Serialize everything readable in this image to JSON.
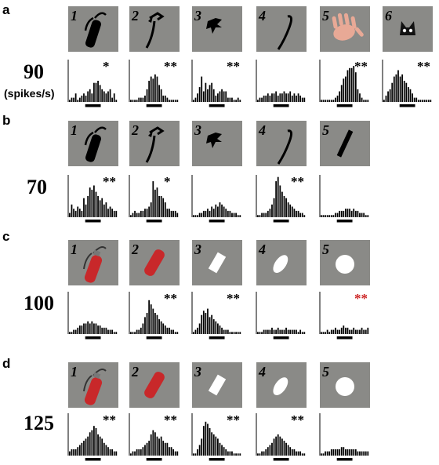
{
  "figure": {
    "panels": [
      {
        "letter": "a",
        "scale_label": "90",
        "unit_label": "(spikes/s)",
        "stimuli": [
          {
            "num": "1",
            "icon": "fire-extinguisher-silhouette-icon",
            "hist": [
              1,
              2,
              2,
              4,
              1,
              2,
              3,
              4,
              3,
              5,
              6,
              4,
              9,
              9,
              10,
              8,
              6,
              5,
              4,
              5,
              6,
              2,
              4,
              1
            ],
            "sig": "*",
            "sig_color": "#000000"
          },
          {
            "num": "2",
            "icon": "extinguisher-hose-icon",
            "hist": [
              1,
              1,
              1,
              1,
              2,
              2,
              2,
              3,
              6,
              10,
              12,
              11,
              13,
              12,
              8,
              6,
              3,
              3,
              2,
              1,
              1,
              1,
              1,
              1
            ],
            "sig": "**",
            "sig_color": "#000000"
          },
          {
            "num": "3",
            "icon": "extinguisher-handle-icon",
            "hist": [
              1,
              2,
              4,
              7,
              12,
              5,
              9,
              6,
              8,
              9,
              6,
              3,
              4,
              5,
              6,
              5,
              5,
              2,
              2,
              2,
              1,
              1,
              2,
              1
            ],
            "sig": "**",
            "sig_color": "#000000"
          },
          {
            "num": "4",
            "icon": "curved-hose-icon",
            "hist": [
              1,
              2,
              2,
              3,
              3,
              4,
              3,
              4,
              4,
              5,
              3,
              4,
              4,
              5,
              4,
              4,
              5,
              3,
              4,
              3,
              4,
              3,
              2,
              2
            ],
            "sig": "",
            "sig_color": "#000000"
          },
          {
            "num": "5",
            "icon": "hand-icon",
            "hist": [
              1,
              1,
              1,
              1,
              1,
              1,
              1,
              2,
              3,
              5,
              8,
              11,
              12,
              15,
              16,
              16,
              17,
              14,
              6,
              4,
              2,
              1,
              1,
              1
            ],
            "sig": "**",
            "sig_color": "#000000"
          },
          {
            "num": "6",
            "icon": "cat-face-icon",
            "hist": [
              1,
              3,
              5,
              6,
              9,
              12,
              13,
              15,
              12,
              13,
              10,
              9,
              7,
              6,
              4,
              2,
              2,
              1,
              1,
              1,
              1,
              1,
              1,
              1
            ],
            "sig": "**",
            "sig_color": "#000000"
          }
        ]
      },
      {
        "letter": "b",
        "scale_label": "70",
        "unit_label": "",
        "stimuli": [
          {
            "num": "1",
            "icon": "fire-extinguisher-silhouette-icon",
            "hist": [
              2,
              6,
              4,
              3,
              5,
              4,
              3,
              9,
              6,
              10,
              14,
              13,
              15,
              12,
              10,
              8,
              9,
              6,
              7,
              4,
              5,
              4,
              3,
              3
            ],
            "sig": "**",
            "sig_color": "#000000"
          },
          {
            "num": "2",
            "icon": "extinguisher-hose-icon",
            "hist": [
              1,
              2,
              3,
              2,
              2,
              3,
              3,
              4,
              4,
              5,
              7,
              17,
              13,
              14,
              10,
              10,
              9,
              7,
              4,
              4,
              3,
              3,
              3,
              2
            ],
            "sig": "*",
            "sig_color": "#000000"
          },
          {
            "num": "3",
            "icon": "extinguisher-handle-icon",
            "hist": [
              1,
              1,
              1,
              2,
              2,
              3,
              3,
              4,
              3,
              5,
              4,
              6,
              5,
              7,
              6,
              5,
              4,
              3,
              3,
              2,
              2,
              2,
              1,
              1
            ],
            "sig": "",
            "sig_color": "#000000"
          },
          {
            "num": "4",
            "icon": "curved-hose-icon",
            "hist": [
              1,
              1,
              2,
              2,
              2,
              3,
              4,
              6,
              9,
              17,
              19,
              15,
              12,
              10,
              9,
              7,
              6,
              5,
              4,
              3,
              3,
              2,
              2,
              1
            ],
            "sig": "**",
            "sig_color": "#000000"
          },
          {
            "num": "5",
            "icon": "rod-icon",
            "hist": [
              1,
              1,
              1,
              1,
              1,
              1,
              1,
              2,
              2,
              3,
              3,
              3,
              4,
              4,
              4,
              3,
              4,
              3,
              3,
              2,
              2,
              2,
              1,
              1
            ],
            "sig": "",
            "sig_color": "#000000"
          }
        ]
      },
      {
        "letter": "c",
        "scale_label": "100",
        "unit_label": "",
        "stimuli": [
          {
            "num": "1",
            "icon": "red-fire-extinguisher-icon",
            "hist": [
              1,
              1,
              2,
              2,
              3,
              4,
              4,
              5,
              5,
              6,
              5,
              6,
              5,
              5,
              4,
              4,
              3,
              3,
              3,
              2,
              2,
              2,
              1,
              1
            ],
            "sig": "",
            "sig_color": "#000000"
          },
          {
            "num": "2",
            "icon": "red-cylinder-icon",
            "hist": [
              1,
              1,
              1,
              2,
              2,
              3,
              5,
              8,
              10,
              16,
              14,
              12,
              10,
              9,
              7,
              6,
              5,
              4,
              3,
              3,
              2,
              2,
              1,
              1
            ],
            "sig": "**",
            "sig_color": "#000000"
          },
          {
            "num": "3",
            "icon": "white-rectangle-icon",
            "hist": [
              1,
              2,
              3,
              5,
              9,
              11,
              10,
              12,
              8,
              9,
              7,
              6,
              5,
              4,
              3,
              2,
              2,
              2,
              1,
              1,
              1,
              1,
              1,
              1
            ],
            "sig": "**",
            "sig_color": "#000000"
          },
          {
            "num": "4",
            "icon": "white-ellipse-icon",
            "hist": [
              1,
              1,
              1,
              2,
              2,
              2,
              2,
              3,
              2,
              2,
              3,
              2,
              2,
              2,
              3,
              2,
              2,
              2,
              2,
              2,
              1,
              2,
              1,
              1
            ],
            "sig": "",
            "sig_color": "#000000"
          },
          {
            "num": "5",
            "icon": "white-circle-icon",
            "hist": [
              1,
              1,
              1,
              2,
              1,
              2,
              2,
              3,
              2,
              2,
              3,
              4,
              3,
              3,
              2,
              2,
              3,
              2,
              2,
              2,
              3,
              2,
              2,
              3
            ],
            "sig": "**",
            "sig_color": "#cc2222"
          }
        ]
      },
      {
        "letter": "d",
        "scale_label": "125",
        "unit_label": "",
        "stimuli": [
          {
            "num": "1",
            "icon": "red-fire-extinguisher-icon",
            "hist": [
              2,
              3,
              3,
              3,
              4,
              5,
              6,
              7,
              8,
              9,
              11,
              12,
              14,
              13,
              10,
              9,
              8,
              6,
              5,
              4,
              3,
              3,
              2,
              2
            ],
            "sig": "**",
            "sig_color": "#000000"
          },
          {
            "num": "2",
            "icon": "red-cylinder-icon",
            "hist": [
              1,
              2,
              2,
              3,
              3,
              3,
              4,
              5,
              6,
              7,
              10,
              12,
              11,
              9,
              8,
              9,
              7,
              6,
              6,
              4,
              4,
              3,
              2,
              2
            ],
            "sig": "**",
            "sig_color": "#000000"
          },
          {
            "num": "3",
            "icon": "white-rectangle-icon",
            "hist": [
              1,
              1,
              3,
              5,
              8,
              14,
              16,
              15,
              13,
              11,
              10,
              9,
              8,
              6,
              5,
              4,
              3,
              2,
              2,
              2,
              1,
              1,
              1,
              1
            ],
            "sig": "**",
            "sig_color": "#000000"
          },
          {
            "num": "4",
            "icon": "white-ellipse-icon",
            "hist": [
              1,
              1,
              2,
              2,
              3,
              4,
              5,
              6,
              8,
              9,
              10,
              9,
              8,
              7,
              6,
              5,
              4,
              3,
              3,
              2,
              2,
              2,
              1,
              1
            ],
            "sig": "**",
            "sig_color": "#000000"
          },
          {
            "num": "5",
            "icon": "white-circle-icon",
            "hist": [
              1,
              1,
              2,
              2,
              2,
              3,
              3,
              3,
              3,
              3,
              4,
              4,
              3,
              3,
              3,
              3,
              3,
              3,
              2,
              2,
              2,
              2,
              2,
              2
            ],
            "sig": "",
            "sig_color": "#000000"
          }
        ]
      }
    ]
  }
}
